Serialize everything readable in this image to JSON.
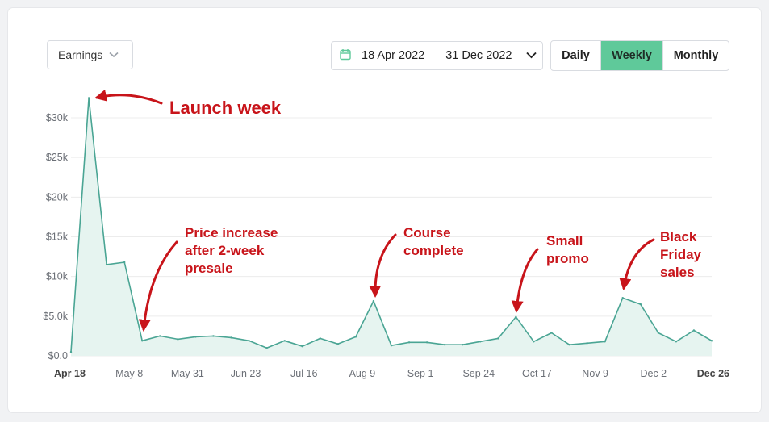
{
  "controls": {
    "metric_select": "Earnings",
    "date_from": "18 Apr 2022",
    "date_to": "31 Dec 2022",
    "granularity_options": [
      "Daily",
      "Weekly",
      "Monthly"
    ],
    "granularity_selected": "Weekly"
  },
  "colors": {
    "line": "#4aa594",
    "area": "#e6f4f0",
    "selected_button": "#5fc99a",
    "annotation": "#c8141a",
    "grid": "#ececec"
  },
  "chart_data": {
    "type": "area",
    "title": "",
    "xlabel": "",
    "ylabel": "",
    "ylim": [
      0,
      30000
    ],
    "grid": "horizontal",
    "y_ticks": [
      "$0.0",
      "$5.0k",
      "$10k",
      "$15k",
      "$20k",
      "$25k",
      "$30k"
    ],
    "x_tick_labels": [
      "Apr 18",
      "May 8",
      "May 31",
      "Jun 23",
      "Jul 16",
      "Aug 9",
      "Sep 1",
      "Sep 24",
      "Oct 17",
      "Nov 9",
      "Dec 2",
      "Dec 26"
    ],
    "x_tick_bold": [
      true,
      false,
      false,
      false,
      false,
      false,
      false,
      false,
      false,
      false,
      false,
      true
    ],
    "series": [
      {
        "values": [
          500,
          32500,
          11500,
          11800,
          1900,
          2500,
          2100,
          2400,
          2500,
          2300,
          1900,
          1000,
          1900,
          1200,
          2200,
          1500,
          2400,
          6900,
          1300,
          1700,
          1700,
          1400,
          1400,
          1800,
          2200,
          4900,
          1800,
          2900,
          1400,
          1600,
          1800,
          7300,
          6500,
          2900,
          1800,
          3200,
          1900
        ]
      }
    ],
    "annotations": [
      {
        "lines": [
          "Launch week"
        ],
        "point_index": 1
      },
      {
        "lines": [
          "Price increase",
          "after 2-week",
          "presale"
        ],
        "point_index": 4
      },
      {
        "lines": [
          "Course",
          "complete"
        ],
        "point_index": 17
      },
      {
        "lines": [
          "Small",
          "promo"
        ],
        "point_index": 25
      },
      {
        "lines": [
          "Black",
          "Friday",
          "sales"
        ],
        "point_index": 31
      }
    ]
  }
}
